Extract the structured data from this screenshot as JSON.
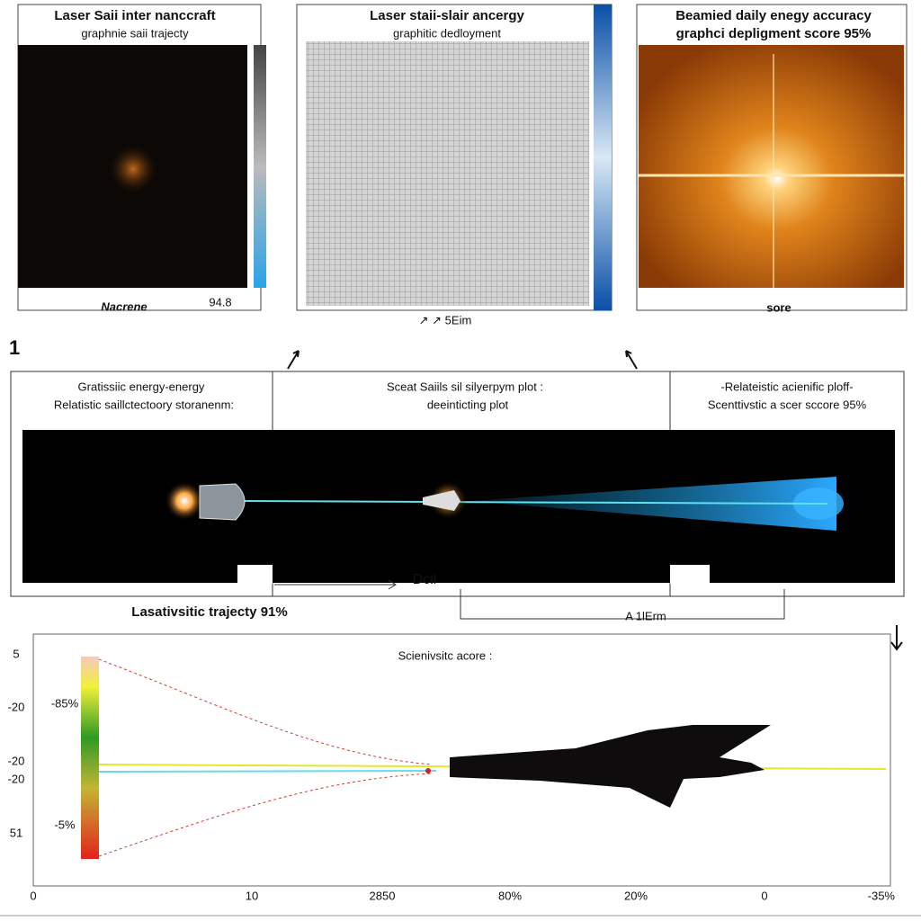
{
  "panels": [
    {
      "title": "Laser Saii inter nanccraft",
      "subtitle": "graphnie saii trajecty",
      "footer": "Nacrene",
      "footer_right": "94.8"
    },
    {
      "title": "Laser staii-slair ancergy",
      "subtitle": "graphitic dedloyment",
      "footer": "↗ ↗ 5Eim"
    },
    {
      "title": "Beamied daily enegy accuracy",
      "subtitle": "graphci depligment score 95%",
      "footer": "sore"
    }
  ],
  "section_number": "1",
  "middle": {
    "left_title": "Gratissiic energy-energy",
    "left_subtitle": "Relatistic saillctectoory storanenm:",
    "center_title": "Sceat Saiils sil silyerpym plot :",
    "center_subtitle": "deeinticting plot",
    "right_title": "-Relateistic acienific ploff-",
    "right_subtitle": "Scenttivstic a scer sccore 95%",
    "arrow_label": "Dcil",
    "caption": "Lasativsitic trajecty 91%",
    "bracket_label": "A 1lErm"
  },
  "bottom_plot": {
    "title": "Scienivsitc acore :",
    "y_labels": [
      "5",
      "-20",
      "-20",
      "-20",
      "51"
    ],
    "colorbar_labels": [
      "-85%",
      "-5%"
    ],
    "x_labels": [
      "0",
      "10",
      "2850",
      "80%",
      "20%",
      "0",
      "-35%"
    ]
  }
}
